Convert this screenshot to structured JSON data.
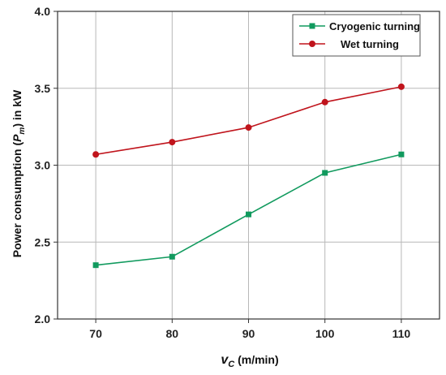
{
  "chart_data": {
    "type": "line",
    "x": [
      70,
      80,
      90,
      100,
      110
    ],
    "x_ticks": [
      "70",
      "80",
      "90",
      "100",
      "110"
    ],
    "y_ticks": [
      "2.0",
      "2.5",
      "3.0",
      "3.5",
      "4.0"
    ],
    "xlim": [
      65,
      115
    ],
    "ylim": [
      2.0,
      4.0
    ],
    "grid": true,
    "legend_position": "top-right",
    "xlabel": {
      "main": "v",
      "sub": "C",
      "unit": " (m/min)"
    },
    "ylabel": {
      "pre": "Power consumption (",
      "main": "P",
      "sub": "m",
      "post": ") in kW"
    },
    "series": [
      {
        "name": "Cryogenic turning",
        "color": "#119a5e",
        "marker": "square",
        "values": [
          2.35,
          2.405,
          2.68,
          2.95,
          3.07
        ]
      },
      {
        "name": "Wet turning",
        "color": "#c0141c",
        "marker": "circle",
        "values": [
          3.07,
          3.15,
          3.245,
          3.41,
          3.51
        ]
      }
    ]
  }
}
